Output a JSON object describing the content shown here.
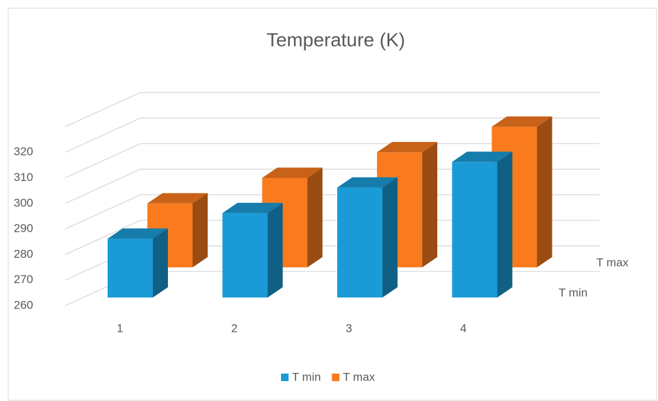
{
  "chart_data": {
    "type": "bar3d",
    "title": "Temperature (K)",
    "categories": [
      "1",
      "2",
      "3",
      "4"
    ],
    "series": [
      {
        "name": "T min",
        "color": "#1a9bd7",
        "values": [
          283,
          293,
          303,
          313
        ]
      },
      {
        "name": "T max",
        "color": "#f97b1e",
        "values": [
          285,
          295,
          305,
          315
        ]
      }
    ],
    "ylim": [
      260,
      330
    ],
    "yticks": [
      260,
      270,
      280,
      290,
      300,
      310,
      320
    ],
    "grid": true,
    "legend": "bottom"
  }
}
